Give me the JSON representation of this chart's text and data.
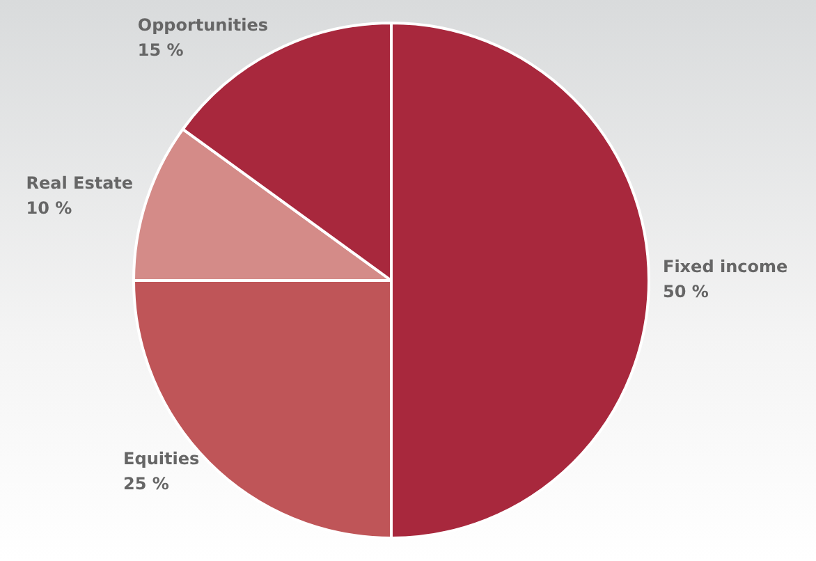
{
  "chart_data": {
    "type": "pie",
    "categories": [
      "Fixed income",
      "Equities",
      "Real Estate",
      "Opportunities"
    ],
    "values": [
      50,
      25,
      10,
      15
    ],
    "colors": [
      "#a8283d",
      "#bf5558",
      "#d48b88",
      "#a8283d"
    ],
    "value_labels": [
      "50 %",
      "25 %",
      "10 %",
      "15 %"
    ],
    "legend": false
  }
}
